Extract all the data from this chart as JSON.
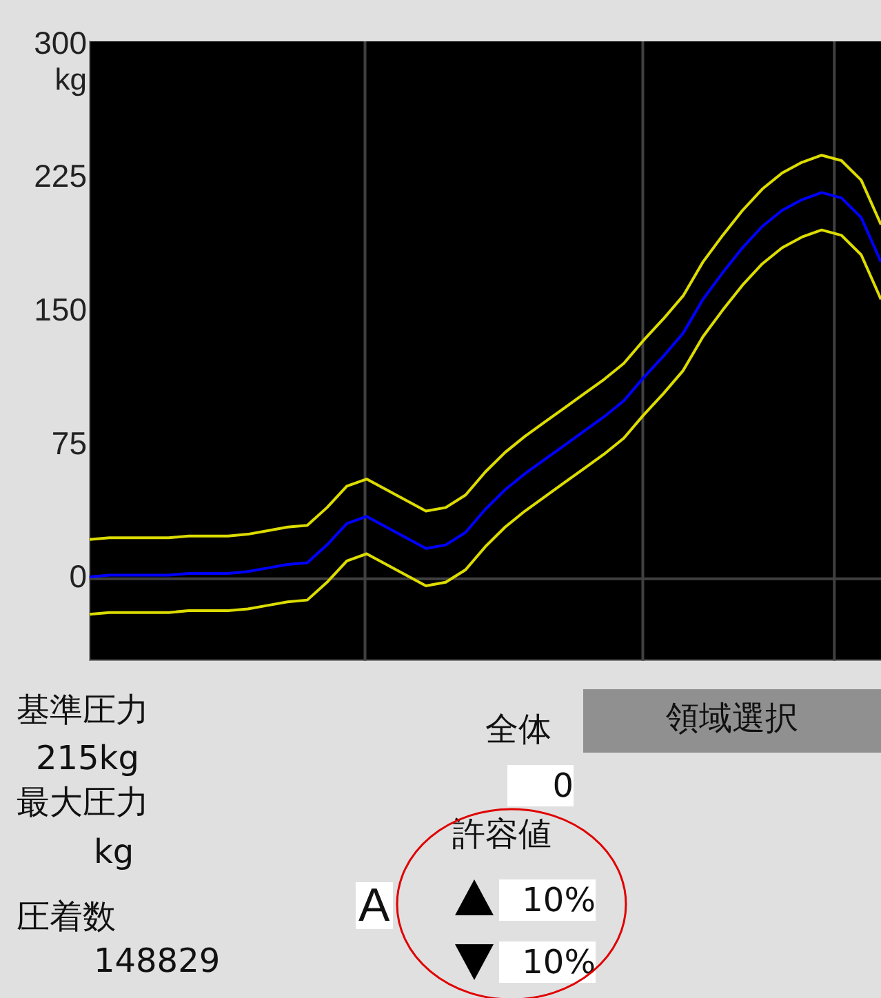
{
  "chart_data": {
    "type": "line",
    "ylabel": "kg",
    "categories": [
      null,
      null,
      null,
      null,
      null,
      null,
      null,
      null,
      null,
      null,
      null,
      null,
      null,
      null,
      null,
      null,
      null,
      null,
      null,
      null,
      null,
      null,
      null,
      null,
      null,
      null,
      null,
      null,
      null,
      null,
      null,
      null,
      null,
      null,
      null,
      null,
      null,
      null,
      null,
      null,
      null
    ],
    "ylim": [
      -46,
      302
    ],
    "yticks": [
      0,
      75,
      150,
      225,
      300
    ],
    "tick_labels": "y",
    "marker": "none",
    "line_style": "solid",
    "legend": false,
    "ref_lines": [
      {
        "axis": "y",
        "value": 0,
        "color": "#404040"
      }
    ],
    "series": [
      {
        "color": "#dcdc00",
        "values": [
          22,
          23,
          23,
          23,
          23,
          24,
          24,
          24,
          25,
          27,
          29,
          30,
          40,
          52,
          56,
          50,
          44,
          38,
          40,
          47,
          60,
          71,
          80,
          88,
          96,
          104,
          112,
          121,
          134,
          146,
          159,
          178,
          193,
          207,
          219,
          228,
          234,
          238,
          235,
          224,
          199
        ]
      },
      {
        "color": "#0000ff",
        "values": [
          1,
          2,
          2,
          2,
          2,
          3,
          3,
          3,
          4,
          6,
          8,
          9,
          19,
          31,
          35,
          29,
          23,
          17,
          19,
          26,
          39,
          50,
          59,
          67,
          75,
          83,
          91,
          100,
          113,
          125,
          138,
          157,
          172,
          186,
          198,
          207,
          213,
          217,
          214,
          203,
          178
        ]
      },
      {
        "color": "#dcdc00",
        "values": [
          -20,
          -19,
          -19,
          -19,
          -19,
          -18,
          -18,
          -18,
          -17,
          -15,
          -13,
          -12,
          -2,
          10,
          14,
          8,
          2,
          -4,
          -2,
          5,
          18,
          29,
          38,
          46,
          54,
          62,
          70,
          79,
          92,
          104,
          117,
          136,
          151,
          165,
          177,
          186,
          192,
          196,
          193,
          182,
          157
        ]
      }
    ],
    "annotations": [
      "基準圧力",
      "215kg",
      "最大圧力",
      "kg",
      "圧着数",
      "148829",
      "全体",
      "領域選択",
      "0",
      "許容値",
      "10%",
      "10%",
      "A"
    ]
  }
}
